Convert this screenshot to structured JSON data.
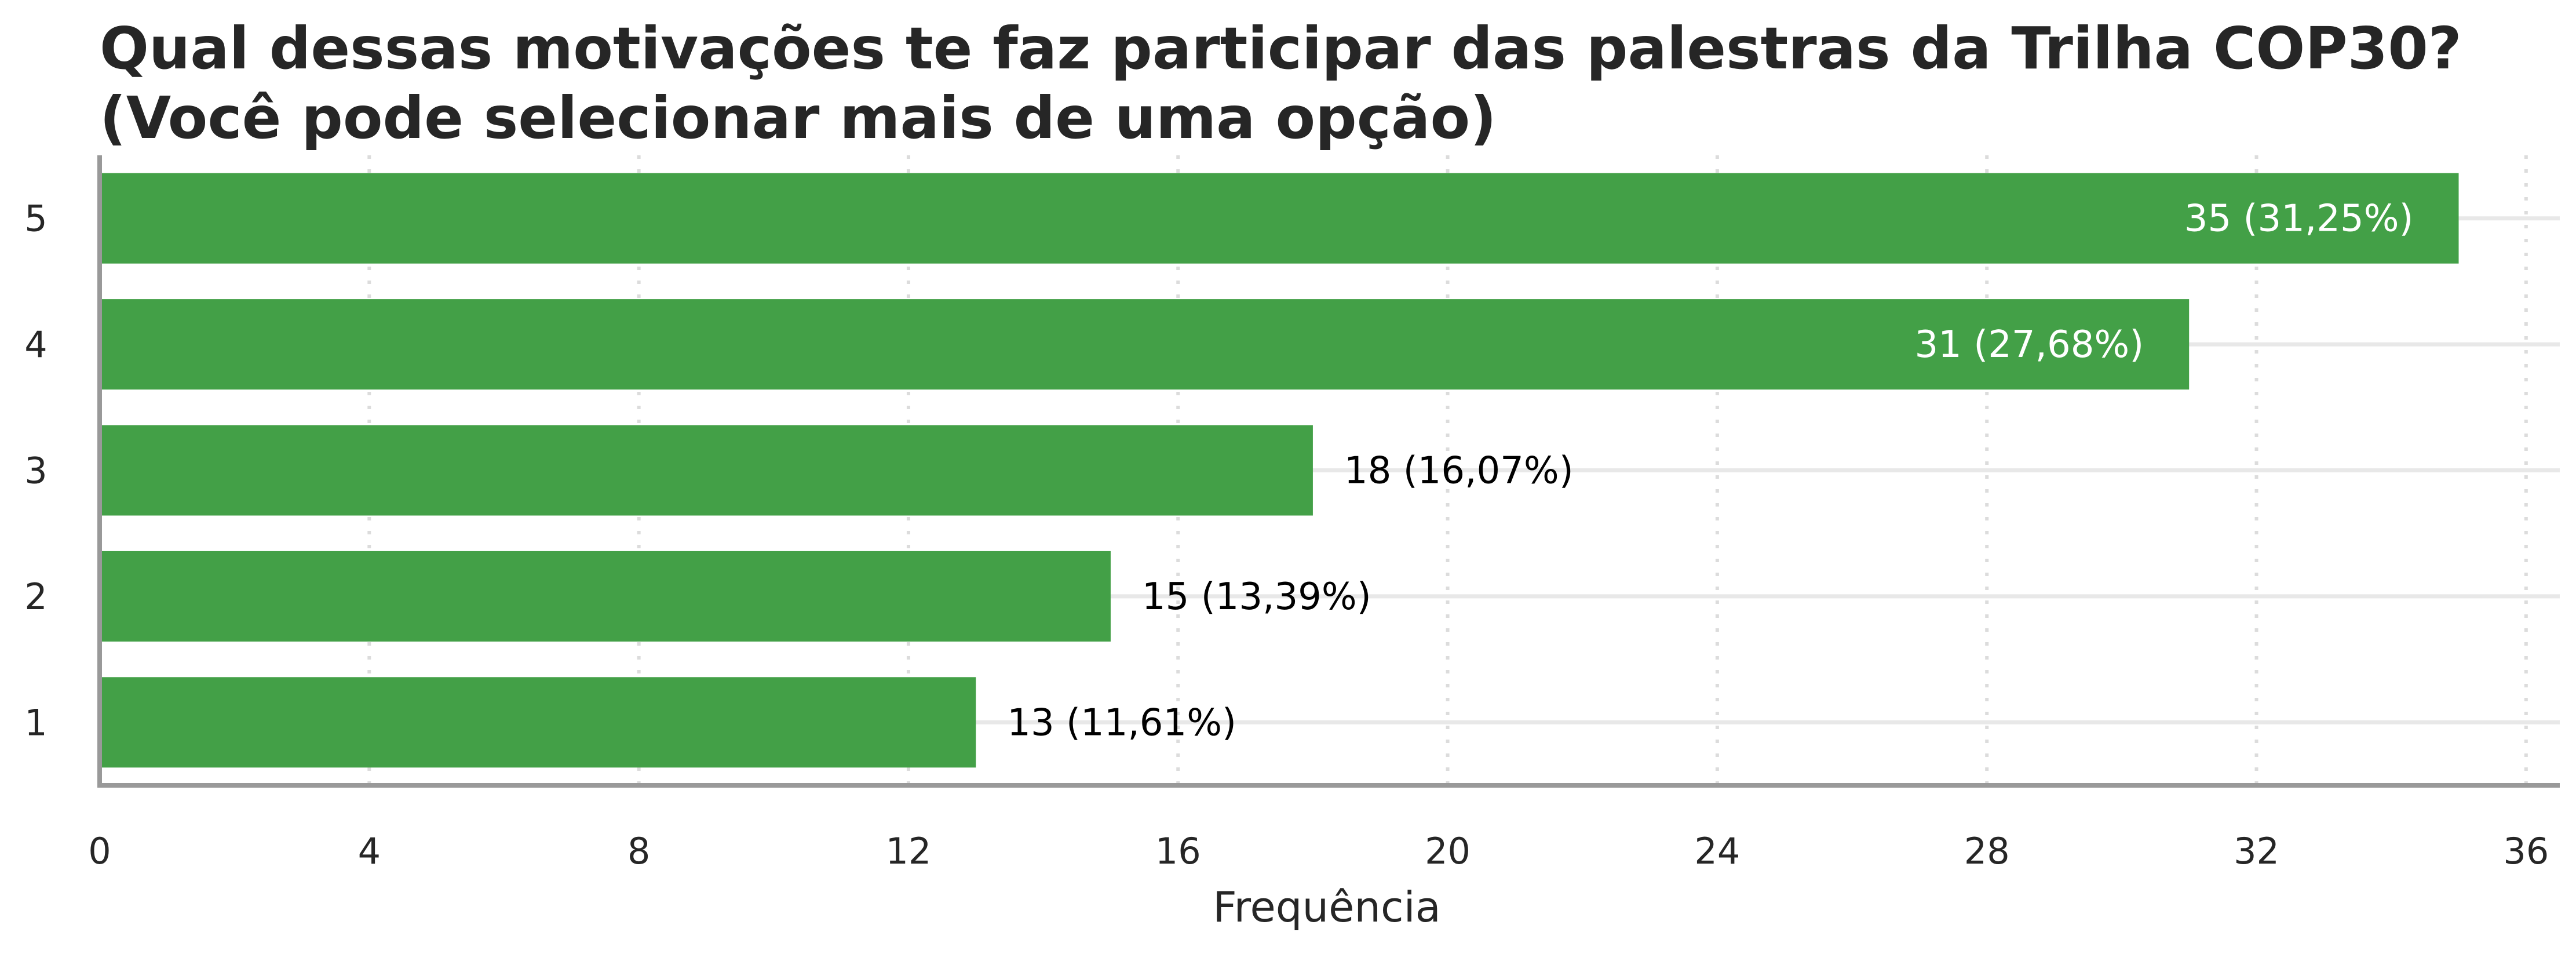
{
  "chart_data": {
    "type": "bar",
    "orientation": "horizontal",
    "title": [
      "Qual dessas motivações te faz participar das palestras da Trilha COP30?",
      "(Você pode selecionar mais de uma opção)"
    ],
    "xlabel": "Frequência",
    "ylabel": "",
    "categories": [
      "1",
      "2",
      "3",
      "4",
      "5"
    ],
    "values": [
      13,
      15,
      18,
      31,
      35
    ],
    "data_labels": [
      "13 (11,61%)",
      "15 (13,39%)",
      "18 (16,07%)",
      "31 (27,68%)",
      "35 (31,25%)"
    ],
    "xlim": [
      0,
      36.5
    ],
    "xticks": [
      0,
      4,
      8,
      12,
      16,
      20,
      24,
      28,
      32,
      36
    ],
    "bar_color": "#43a047",
    "label_inside_color": "#ffffff",
    "label_outside_color": "#000000",
    "grid": true
  }
}
